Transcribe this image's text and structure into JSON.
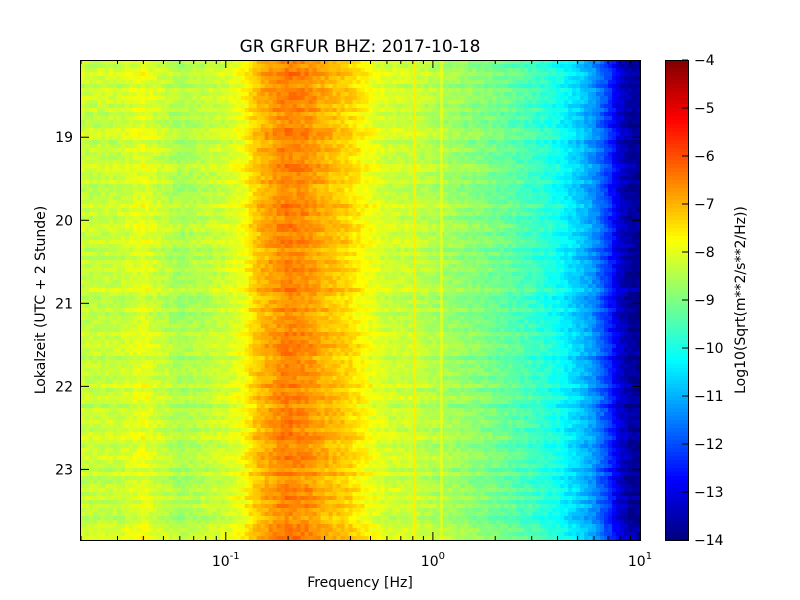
{
  "chart_data": {
    "type": "heatmap",
    "title": "GR GRFUR BHZ: 2017-10-18",
    "xlabel": "Frequency [Hz]",
    "ylabel": "Lokalzeit (UTC + 2 Stunde)",
    "xscale": "log",
    "xlim": [
      0.02,
      10
    ],
    "ylim": [
      18.07,
      23.85
    ],
    "y_inverted": true,
    "x_ticks": [
      {
        "value": 0.1,
        "base": "10",
        "exp": "-1"
      },
      {
        "value": 1,
        "base": "10",
        "exp": "0"
      },
      {
        "value": 10,
        "base": "10",
        "exp": "1"
      }
    ],
    "y_ticks": [
      {
        "value": 19,
        "label": "19"
      },
      {
        "value": 20,
        "label": "20"
      },
      {
        "value": 21,
        "label": "21"
      },
      {
        "value": 22,
        "label": "22"
      },
      {
        "value": 23,
        "label": "23"
      }
    ],
    "colorbar": {
      "label": "Log10(Sqrt(m**2/s**2/Hz))",
      "colormap": "jet",
      "range": [
        -14,
        -4
      ],
      "ticks": [
        {
          "value": -4,
          "label": "−4"
        },
        {
          "value": -5,
          "label": "−5"
        },
        {
          "value": -6,
          "label": "−6"
        },
        {
          "value": -7,
          "label": "−7"
        },
        {
          "value": -8,
          "label": "−8"
        },
        {
          "value": -9,
          "label": "−9"
        },
        {
          "value": -10,
          "label": "−10"
        },
        {
          "value": -11,
          "label": "−11"
        },
        {
          "value": -12,
          "label": "−12"
        },
        {
          "value": -13,
          "label": "−13"
        },
        {
          "value": -14,
          "label": "−14"
        }
      ]
    },
    "spectrum_profile": {
      "frequency_hz": [
        0.02,
        0.03,
        0.04,
        0.06,
        0.08,
        0.1,
        0.12,
        0.14,
        0.16,
        0.2,
        0.25,
        0.3,
        0.4,
        0.5,
        0.6,
        0.8,
        1.0,
        1.3,
        1.6,
        2.0,
        3.0,
        4.0,
        5.0,
        6.0,
        7.0,
        8.0,
        9.0,
        10.0
      ],
      "log10_psd": [
        -8.3,
        -8.3,
        -8.0,
        -8.6,
        -8.4,
        -8.2,
        -7.9,
        -7.2,
        -6.9,
        -6.5,
        -6.7,
        -7.0,
        -7.4,
        -7.9,
        -8.2,
        -8.3,
        -8.5,
        -8.7,
        -8.9,
        -9.1,
        -9.6,
        -10.1,
        -10.7,
        -11.3,
        -12.2,
        -13.2,
        -13.7,
        -13.8
      ]
    },
    "narrow_lines_hz": [
      0.82,
      1.1
    ],
    "narrow_line_values": [
      -7.6,
      -7.9
    ]
  }
}
